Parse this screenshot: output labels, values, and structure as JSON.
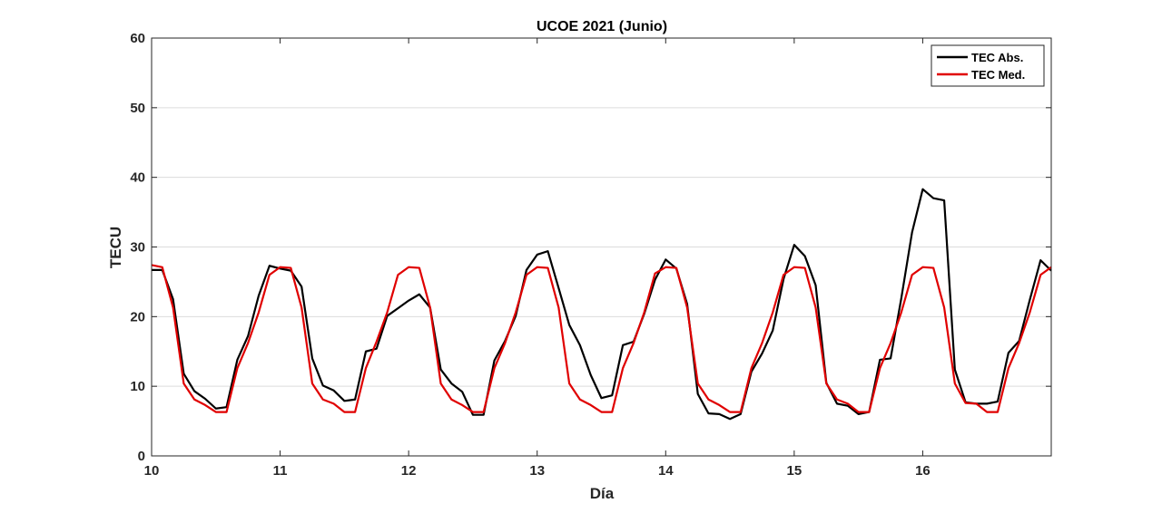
{
  "chart_data": {
    "type": "line",
    "title": "UCOE 2021 (Junio)",
    "xlabel": "Día",
    "ylabel": "TECU",
    "xlim": [
      10,
      17
    ],
    "ylim": [
      0,
      60
    ],
    "x_ticks": [
      10,
      11,
      12,
      13,
      14,
      15,
      16
    ],
    "y_ticks": [
      0,
      10,
      20,
      30,
      40,
      50,
      60
    ],
    "grid": "horizontal",
    "legend_position": "top-right",
    "series": [
      {
        "name": "TEC Abs.",
        "color": "#000000",
        "x": [
          10.0,
          10.083,
          10.167,
          10.25,
          10.333,
          10.417,
          10.5,
          10.583,
          10.667,
          10.75,
          10.833,
          10.917,
          11.0,
          11.083,
          11.167,
          11.25,
          11.333,
          11.417,
          11.5,
          11.583,
          11.667,
          11.75,
          11.833,
          11.917,
          12.0,
          12.083,
          12.167,
          12.25,
          12.333,
          12.417,
          12.5,
          12.583,
          12.667,
          12.75,
          12.833,
          12.917,
          13.0,
          13.083,
          13.167,
          13.25,
          13.333,
          13.417,
          13.5,
          13.583,
          13.667,
          13.75,
          13.833,
          13.917,
          14.0,
          14.083,
          14.167,
          14.25,
          14.333,
          14.417,
          14.5,
          14.583,
          14.667,
          14.75,
          14.833,
          14.917,
          15.0,
          15.083,
          15.167,
          15.25,
          15.333,
          15.417,
          15.5,
          15.583,
          15.667,
          15.75,
          15.833,
          15.917,
          16.0,
          16.083,
          16.167,
          16.25,
          16.333,
          16.417,
          16.5,
          16.583,
          16.667,
          16.75,
          16.833,
          16.917,
          17.0
        ],
        "y": [
          26.7,
          26.7,
          22.5,
          11.8,
          9.3,
          8.2,
          6.8,
          7.0,
          13.8,
          17.2,
          23.0,
          27.3,
          26.9,
          26.6,
          24.3,
          14.0,
          10.1,
          9.4,
          7.9,
          8.1,
          15.0,
          15.4,
          20.1,
          21.2,
          22.3,
          23.2,
          21.3,
          12.4,
          10.4,
          9.2,
          5.9,
          5.9,
          13.7,
          16.5,
          20.1,
          26.7,
          28.9,
          29.4,
          24.1,
          18.8,
          15.9,
          11.6,
          8.3,
          8.7,
          15.9,
          16.4,
          20.4,
          25.3,
          28.2,
          26.9,
          21.8,
          8.9,
          6.1,
          6.0,
          5.3,
          6.0,
          12.1,
          14.7,
          18.0,
          25.4,
          30.3,
          28.7,
          24.5,
          10.5,
          7.5,
          7.2,
          6.0,
          6.3,
          13.8,
          14.0,
          22.6,
          32.1,
          38.3,
          37.0,
          36.7,
          12.4,
          7.7,
          7.5,
          7.5,
          7.8,
          14.8,
          16.5,
          22.4,
          28.1,
          26.6
        ]
      },
      {
        "name": "TEC Med.",
        "color": "#e00000",
        "x": [
          10.0,
          10.083,
          10.167,
          10.25,
          10.333,
          10.417,
          10.5,
          10.583,
          10.667,
          10.75,
          10.833,
          10.917,
          11.0,
          11.083,
          11.167,
          11.25,
          11.333,
          11.417,
          11.5,
          11.583,
          11.667,
          11.75,
          11.833,
          11.917,
          12.0,
          12.083,
          12.167,
          12.25,
          12.333,
          12.417,
          12.5,
          12.583,
          12.667,
          12.75,
          12.833,
          12.917,
          13.0,
          13.083,
          13.167,
          13.25,
          13.333,
          13.417,
          13.5,
          13.583,
          13.667,
          13.75,
          13.833,
          13.917,
          14.0,
          14.083,
          14.167,
          14.25,
          14.333,
          14.417,
          14.5,
          14.583,
          14.667,
          14.75,
          14.833,
          14.917,
          15.0,
          15.083,
          15.167,
          15.25,
          15.333,
          15.417,
          15.5,
          15.583,
          15.667,
          15.75,
          15.833,
          15.917,
          16.0,
          16.083,
          16.167,
          16.25,
          16.333,
          16.417,
          16.5,
          16.583,
          16.667,
          16.75,
          16.833,
          16.917,
          17.0
        ],
        "y": [
          27.4,
          27.1,
          21.3,
          10.4,
          8.1,
          7.3,
          6.3,
          6.3,
          12.6,
          16.2,
          20.6,
          26.0,
          27.1,
          27.0,
          21.3,
          10.4,
          8.1,
          7.5,
          6.3,
          6.3,
          12.6,
          16.4,
          20.6,
          26.0,
          27.1,
          27.0,
          21.3,
          10.4,
          8.1,
          7.3,
          6.3,
          6.3,
          12.6,
          16.2,
          20.6,
          26.0,
          27.1,
          27.0,
          21.3,
          10.4,
          8.1,
          7.3,
          6.3,
          6.3,
          12.6,
          16.2,
          20.6,
          26.2,
          27.1,
          27.0,
          21.3,
          10.4,
          8.1,
          7.3,
          6.3,
          6.3,
          12.6,
          16.2,
          20.6,
          26.0,
          27.1,
          27.0,
          21.3,
          10.4,
          8.1,
          7.5,
          6.3,
          6.3,
          12.6,
          16.2,
          20.6,
          26.0,
          27.1,
          27.0,
          21.3,
          10.4,
          7.6,
          7.5,
          6.3,
          6.3,
          12.6,
          16.2,
          20.6,
          26.0,
          27.1
        ]
      }
    ]
  }
}
